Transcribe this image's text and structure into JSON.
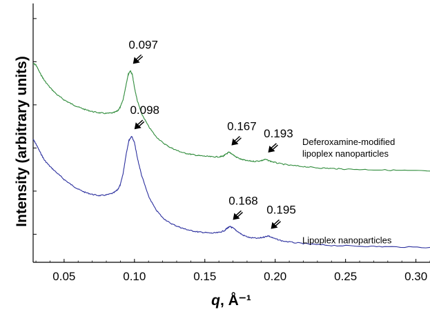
{
  "chart_data": {
    "type": "line",
    "title": "",
    "xlabel_italic": "q",
    "xlabel_rest": ", Å⁻¹",
    "ylabel": "Intensity (arbitrary units)",
    "xlim": [
      0.028,
      0.31
    ],
    "x_ticks": [
      {
        "value": 0.05,
        "label": "0.05"
      },
      {
        "value": 0.1,
        "label": "0.10"
      },
      {
        "value": 0.15,
        "label": "0.15"
      },
      {
        "value": 0.2,
        "label": "0.20"
      },
      {
        "value": 0.25,
        "label": "0.25"
      },
      {
        "value": 0.3,
        "label": "0.30"
      }
    ],
    "y_ticks_count": 6,
    "grid": false,
    "series": [
      {
        "key": "deferoxamine",
        "color": "#2e8b3a",
        "label_lines": [
          "Deferoxamine-modified",
          "lipoplex nanoparticles"
        ],
        "points": [
          [
            0.028,
            0.93
          ],
          [
            0.03,
            0.95
          ],
          [
            0.033,
            1.08
          ],
          [
            0.036,
            1.19
          ],
          [
            0.04,
            1.3
          ],
          [
            0.045,
            1.41
          ],
          [
            0.05,
            1.49
          ],
          [
            0.055,
            1.55
          ],
          [
            0.06,
            1.6
          ],
          [
            0.065,
            1.64
          ],
          [
            0.07,
            1.67
          ],
          [
            0.075,
            1.69
          ],
          [
            0.08,
            1.7
          ],
          [
            0.085,
            1.69
          ],
          [
            0.088,
            1.66
          ],
          [
            0.09,
            1.6
          ],
          [
            0.092,
            1.48
          ],
          [
            0.094,
            1.26
          ],
          [
            0.0955,
            1.1
          ],
          [
            0.097,
            1.04
          ],
          [
            0.0985,
            1.1
          ],
          [
            0.1,
            1.3
          ],
          [
            0.102,
            1.5
          ],
          [
            0.105,
            1.7
          ],
          [
            0.11,
            1.9
          ],
          [
            0.115,
            2.05
          ],
          [
            0.12,
            2.15
          ],
          [
            0.125,
            2.22
          ],
          [
            0.13,
            2.27
          ],
          [
            0.135,
            2.31
          ],
          [
            0.14,
            2.33
          ],
          [
            0.145,
            2.35
          ],
          [
            0.15,
            2.36
          ],
          [
            0.155,
            2.37
          ],
          [
            0.16,
            2.37
          ],
          [
            0.163,
            2.36
          ],
          [
            0.165,
            2.33
          ],
          [
            0.167,
            2.3
          ],
          [
            0.169,
            2.32
          ],
          [
            0.172,
            2.37
          ],
          [
            0.176,
            2.41
          ],
          [
            0.18,
            2.43
          ],
          [
            0.185,
            2.44
          ],
          [
            0.19,
            2.43
          ],
          [
            0.193,
            2.41
          ],
          [
            0.197,
            2.44
          ],
          [
            0.202,
            2.47
          ],
          [
            0.21,
            2.5
          ],
          [
            0.22,
            2.52
          ],
          [
            0.23,
            2.54
          ],
          [
            0.24,
            2.55
          ],
          [
            0.25,
            2.56
          ],
          [
            0.27,
            2.57
          ],
          [
            0.29,
            2.58
          ],
          [
            0.31,
            2.59
          ]
        ]
      },
      {
        "key": "lipoplex",
        "color": "#2b2f9e",
        "label_lines": [
          "Lipoplex nanoparticles"
        ],
        "points": [
          [
            0.028,
            2.1
          ],
          [
            0.03,
            2.17
          ],
          [
            0.033,
            2.3
          ],
          [
            0.036,
            2.42
          ],
          [
            0.04,
            2.52
          ],
          [
            0.045,
            2.62
          ],
          [
            0.05,
            2.72
          ],
          [
            0.055,
            2.8
          ],
          [
            0.06,
            2.87
          ],
          [
            0.065,
            2.92
          ],
          [
            0.07,
            2.95
          ],
          [
            0.075,
            2.97
          ],
          [
            0.08,
            2.96
          ],
          [
            0.085,
            2.93
          ],
          [
            0.088,
            2.88
          ],
          [
            0.09,
            2.8
          ],
          [
            0.092,
            2.62
          ],
          [
            0.094,
            2.34
          ],
          [
            0.096,
            2.12
          ],
          [
            0.098,
            2.05
          ],
          [
            0.1,
            2.15
          ],
          [
            0.102,
            2.38
          ],
          [
            0.105,
            2.65
          ],
          [
            0.11,
            2.98
          ],
          [
            0.115,
            3.18
          ],
          [
            0.12,
            3.31
          ],
          [
            0.125,
            3.39
          ],
          [
            0.13,
            3.44
          ],
          [
            0.135,
            3.48
          ],
          [
            0.14,
            3.51
          ],
          [
            0.145,
            3.53
          ],
          [
            0.15,
            3.54
          ],
          [
            0.155,
            3.55
          ],
          [
            0.16,
            3.54
          ],
          [
            0.164,
            3.51
          ],
          [
            0.166,
            3.47
          ],
          [
            0.168,
            3.45
          ],
          [
            0.17,
            3.47
          ],
          [
            0.173,
            3.52
          ],
          [
            0.177,
            3.58
          ],
          [
            0.182,
            3.62
          ],
          [
            0.188,
            3.63
          ],
          [
            0.192,
            3.61
          ],
          [
            0.195,
            3.59
          ],
          [
            0.199,
            3.63
          ],
          [
            0.205,
            3.67
          ],
          [
            0.215,
            3.7
          ],
          [
            0.225,
            3.72
          ],
          [
            0.24,
            3.74
          ],
          [
            0.26,
            3.75
          ],
          [
            0.28,
            3.76
          ],
          [
            0.31,
            3.77
          ]
        ]
      }
    ],
    "annotations": [
      {
        "label": "0.097",
        "series": "deferoxamine",
        "x": 0.097
      },
      {
        "label": "0.167",
        "series": "deferoxamine",
        "x": 0.167
      },
      {
        "label": "0.193",
        "series": "deferoxamine",
        "x": 0.193
      },
      {
        "label": "0.098",
        "series": "lipoplex",
        "x": 0.098
      },
      {
        "label": "0.168",
        "series": "lipoplex",
        "x": 0.168
      },
      {
        "label": "0.195",
        "series": "lipoplex",
        "x": 0.195
      }
    ]
  }
}
